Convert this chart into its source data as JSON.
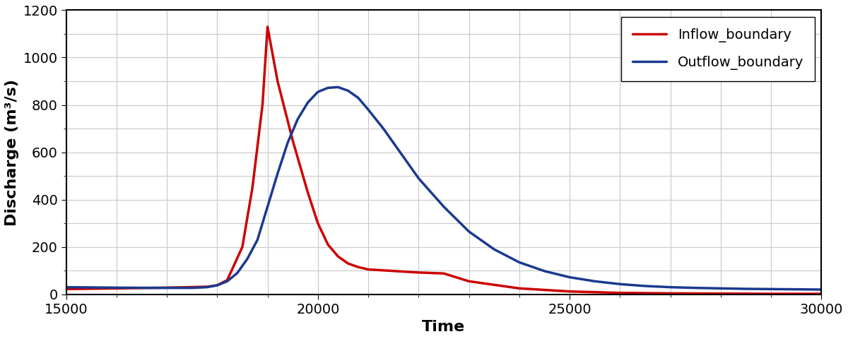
{
  "xlabel": "Time",
  "ylabel": "Discharge (m³/s)",
  "xlim": [
    15000,
    30000
  ],
  "ylim": [
    0,
    1200
  ],
  "xticks": [
    15000,
    20000,
    25000,
    30000
  ],
  "yticks": [
    0,
    200,
    400,
    600,
    800,
    1000,
    1200
  ],
  "inflow_color": "#cc0000",
  "outflow_color": "#1a3a8f",
  "inflow_label": "Inflow_boundary",
  "outflow_label": "Outflow_boundary",
  "linewidth": 2.5,
  "legend_fontsize": 14,
  "axis_label_fontsize": 16,
  "tick_fontsize": 14,
  "background_color": "#ffffff",
  "grid_color": "#c8c8c8",
  "inflow_points": [
    [
      15000,
      22
    ],
    [
      17000,
      28
    ],
    [
      17800,
      32
    ],
    [
      18000,
      38
    ],
    [
      18200,
      60
    ],
    [
      18500,
      200
    ],
    [
      18700,
      450
    ],
    [
      18900,
      800
    ],
    [
      19000,
      1130
    ],
    [
      19200,
      900
    ],
    [
      19500,
      650
    ],
    [
      19800,
      430
    ],
    [
      20000,
      300
    ],
    [
      20200,
      210
    ],
    [
      20400,
      160
    ],
    [
      20600,
      130
    ],
    [
      20800,
      115
    ],
    [
      21000,
      105
    ],
    [
      22000,
      92
    ],
    [
      22500,
      88
    ],
    [
      23000,
      55
    ],
    [
      24000,
      25
    ],
    [
      25000,
      12
    ],
    [
      26000,
      6
    ],
    [
      27000,
      4
    ],
    [
      28000,
      3
    ],
    [
      29000,
      2
    ],
    [
      30000,
      2
    ]
  ],
  "outflow_points": [
    [
      15000,
      30
    ],
    [
      16000,
      28
    ],
    [
      17000,
      27
    ],
    [
      17500,
      27
    ],
    [
      17800,
      30
    ],
    [
      18000,
      38
    ],
    [
      18200,
      55
    ],
    [
      18400,
      90
    ],
    [
      18600,
      150
    ],
    [
      18800,
      230
    ],
    [
      19000,
      370
    ],
    [
      19200,
      510
    ],
    [
      19400,
      640
    ],
    [
      19600,
      740
    ],
    [
      19800,
      810
    ],
    [
      20000,
      855
    ],
    [
      20200,
      872
    ],
    [
      20400,
      875
    ],
    [
      20600,
      860
    ],
    [
      20800,
      830
    ],
    [
      21000,
      780
    ],
    [
      21300,
      700
    ],
    [
      21600,
      610
    ],
    [
      22000,
      490
    ],
    [
      22500,
      370
    ],
    [
      23000,
      265
    ],
    [
      23500,
      190
    ],
    [
      24000,
      135
    ],
    [
      24500,
      98
    ],
    [
      25000,
      72
    ],
    [
      25500,
      55
    ],
    [
      26000,
      43
    ],
    [
      26500,
      35
    ],
    [
      27000,
      30
    ],
    [
      27500,
      27
    ],
    [
      28000,
      25
    ],
    [
      28500,
      23
    ],
    [
      29000,
      22
    ],
    [
      29500,
      21
    ],
    [
      30000,
      20
    ]
  ],
  "x_minor_ticks": [
    15000,
    16000,
    17000,
    18000,
    19000,
    20000,
    21000,
    22000,
    23000,
    24000,
    25000,
    26000,
    27000,
    28000,
    29000,
    30000
  ],
  "y_minor_ticks": [
    0,
    100,
    200,
    300,
    400,
    500,
    600,
    700,
    800,
    900,
    1000,
    1100,
    1200
  ]
}
